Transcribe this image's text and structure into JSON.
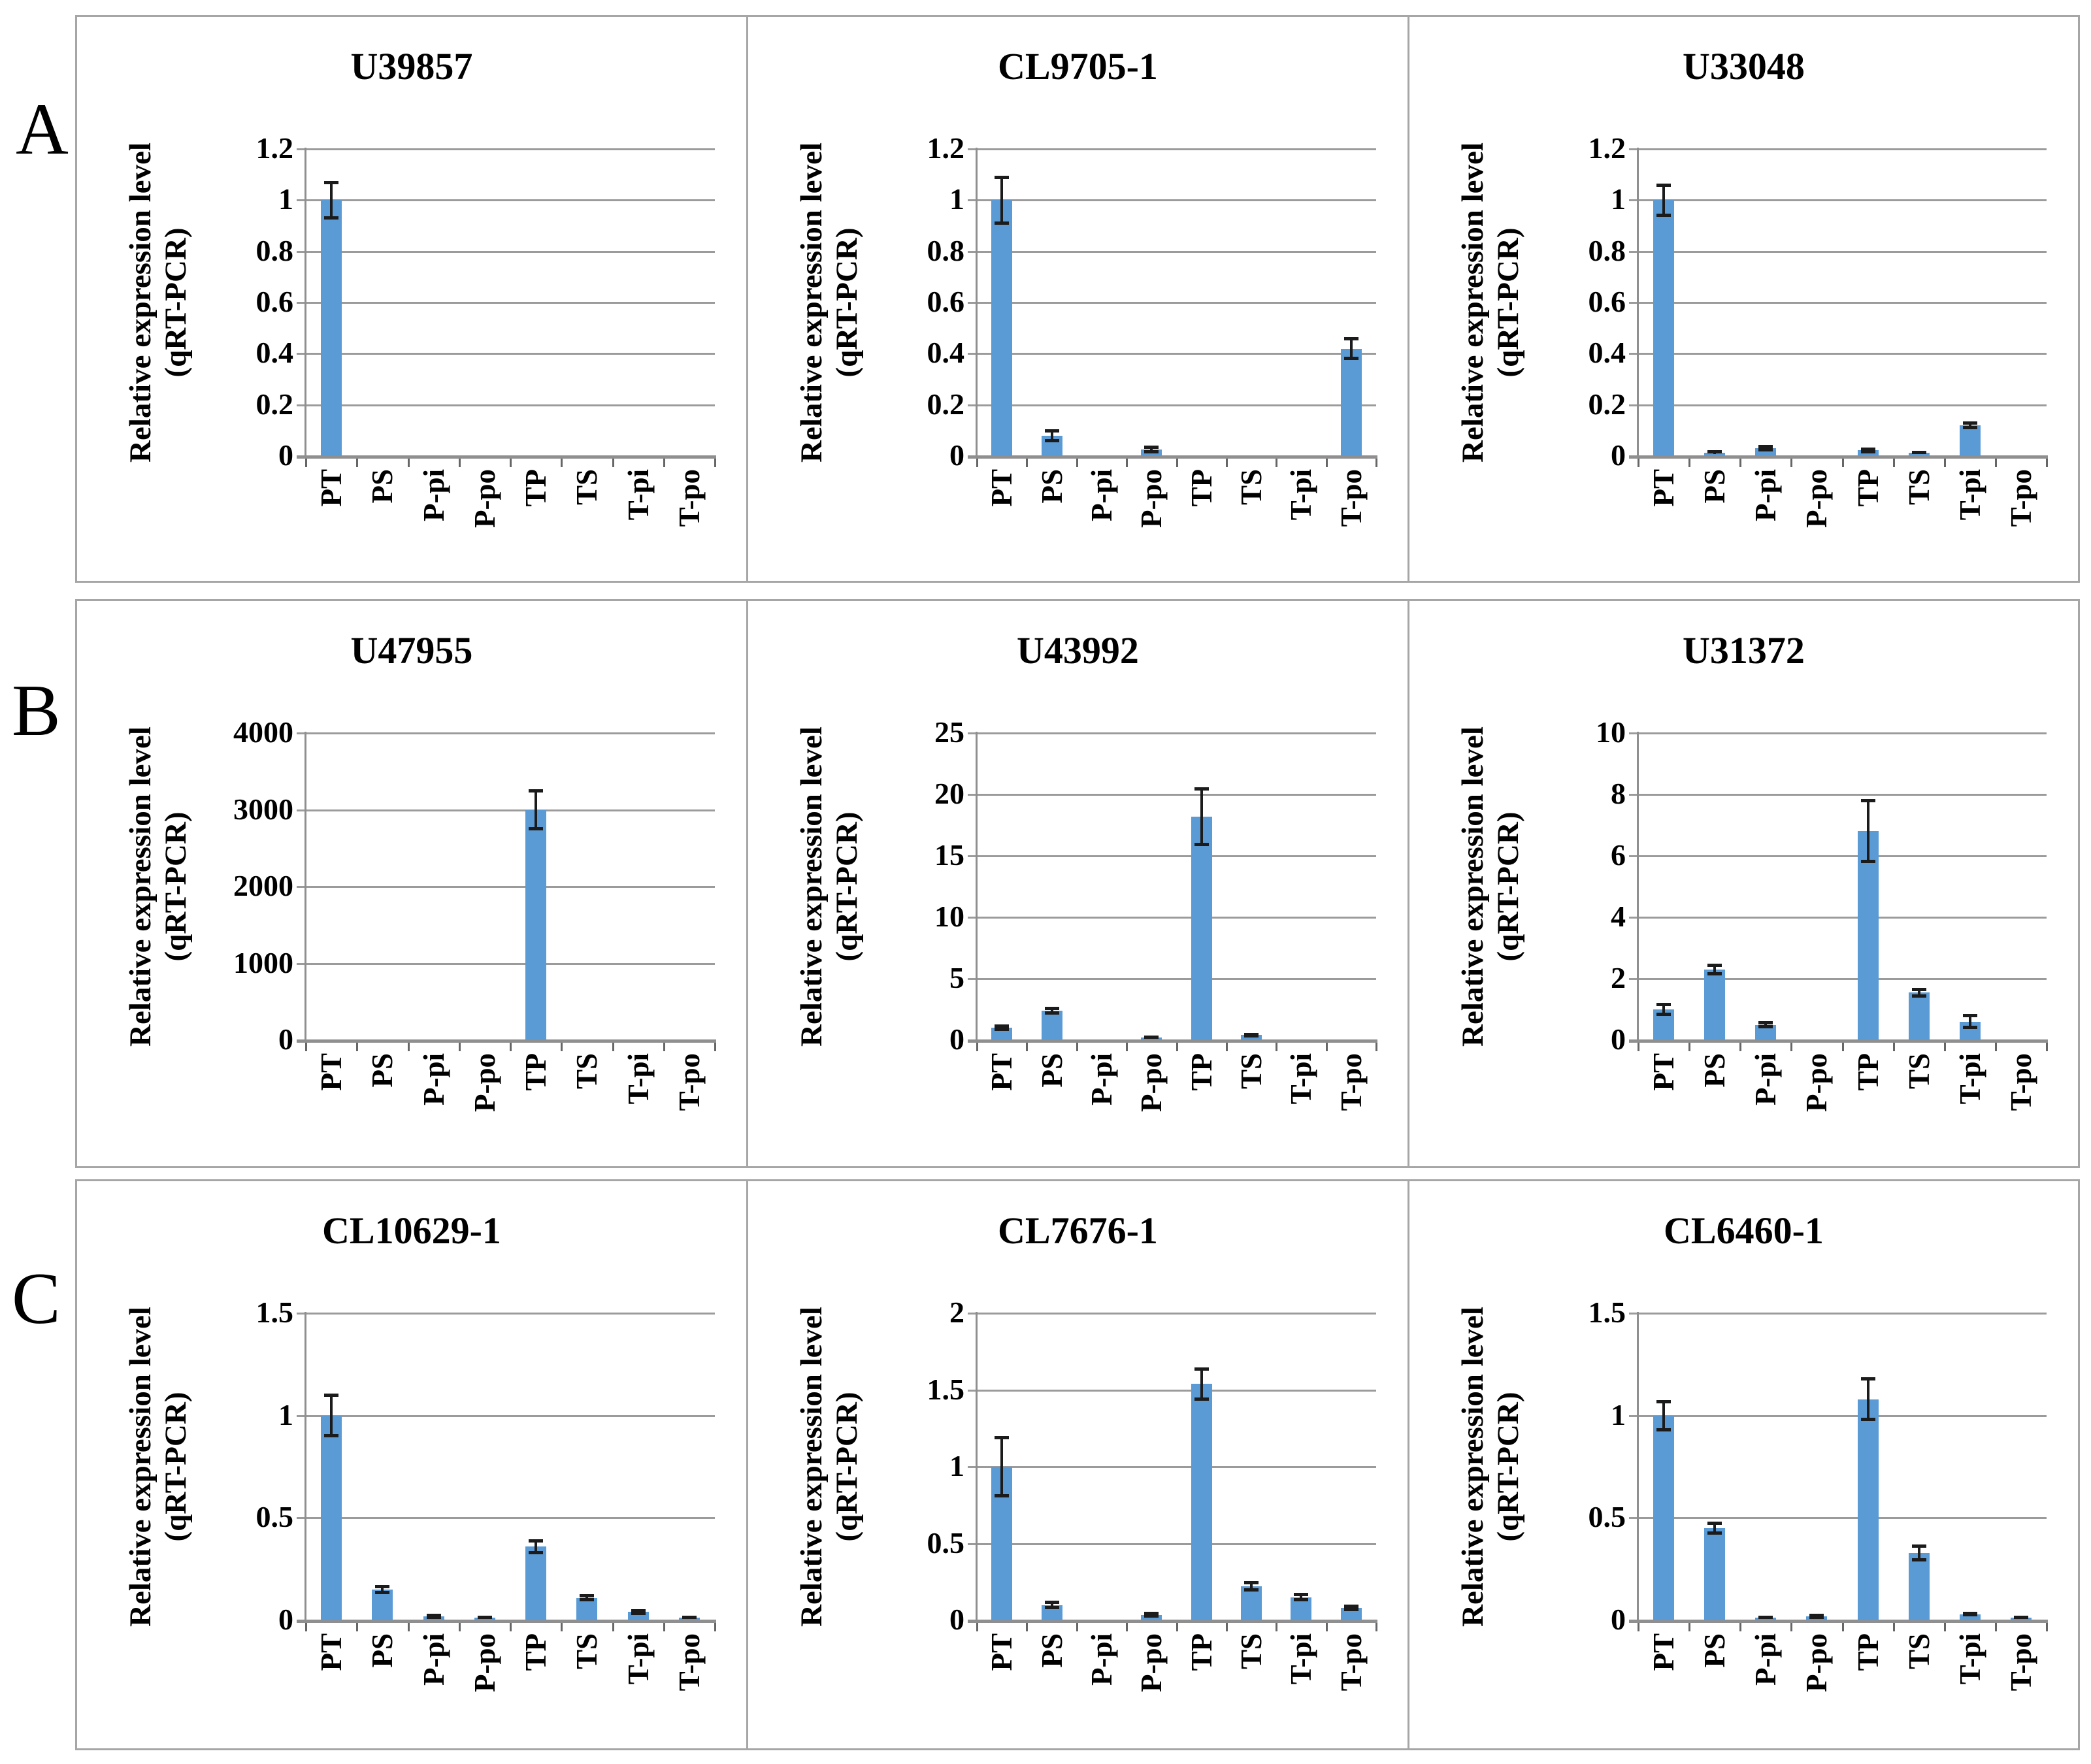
{
  "figure": {
    "row_labels": [
      "A",
      "B",
      "C"
    ],
    "y_axis_label_line1": "Relative expression level",
    "y_axis_label_line2": "(qRT-PCR)",
    "categories": [
      "PT",
      "PS",
      "P-pi",
      "P-po",
      "TP",
      "TS",
      "T-pi",
      "T-po"
    ],
    "colors": {
      "bar": "#5b9bd5",
      "grid": "#9b9b9b",
      "axis": "#8f8f8f",
      "tick": "#666666",
      "error_bar": "#1b1b1b",
      "panel_border": "#a6a6a6",
      "text": "#000000"
    }
  },
  "chart_data": [
    {
      "type": "bar",
      "panel": "A",
      "title": "U39857",
      "ylabel": "Relative expression level (qRT-PCR)",
      "ylim": [
        0,
        1.2
      ],
      "yticks": [
        0,
        0.2,
        0.4,
        0.6,
        0.8,
        1,
        1.2
      ],
      "grid": true,
      "categories": [
        "PT",
        "PS",
        "P-pi",
        "P-po",
        "TP",
        "TS",
        "T-pi",
        "T-po"
      ],
      "values": [
        1.0,
        0,
        0,
        0,
        0,
        0,
        0,
        0
      ],
      "errors": [
        0.07,
        0,
        0,
        0,
        0,
        0,
        0,
        0
      ]
    },
    {
      "type": "bar",
      "panel": "A",
      "title": "CL9705-1",
      "ylabel": "Relative expression level (qRT-PCR)",
      "ylim": [
        0,
        1.2
      ],
      "yticks": [
        0,
        0.2,
        0.4,
        0.6,
        0.8,
        1,
        1.2
      ],
      "grid": true,
      "categories": [
        "PT",
        "PS",
        "P-pi",
        "P-po",
        "TP",
        "TS",
        "T-pi",
        "T-po"
      ],
      "values": [
        1.0,
        0.08,
        0,
        0.025,
        0,
        0,
        0,
        0.42
      ],
      "errors": [
        0.09,
        0.02,
        0,
        0.01,
        0,
        0,
        0,
        0.04
      ]
    },
    {
      "type": "bar",
      "panel": "A",
      "title": "U33048",
      "ylabel": "Relative expression level (qRT-PCR)",
      "ylim": [
        0,
        1.2
      ],
      "yticks": [
        0,
        0.2,
        0.4,
        0.6,
        0.8,
        1,
        1.2
      ],
      "grid": true,
      "categories": [
        "PT",
        "PS",
        "P-pi",
        "P-po",
        "TP",
        "TS",
        "T-pi",
        "T-po"
      ],
      "values": [
        1.0,
        0.012,
        0.03,
        0,
        0.022,
        0.012,
        0.12,
        0
      ],
      "errors": [
        0.06,
        0.005,
        0.008,
        0,
        0.006,
        0.004,
        0.01,
        0
      ]
    },
    {
      "type": "bar",
      "panel": "B",
      "title": "U47955",
      "ylabel": "Relative expression level (qRT-PCR)",
      "ylim": [
        0,
        4000
      ],
      "yticks": [
        0,
        1000,
        2000,
        3000,
        4000
      ],
      "grid": true,
      "categories": [
        "PT",
        "PS",
        "P-pi",
        "P-po",
        "TP",
        "TS",
        "T-pi",
        "T-po"
      ],
      "values": [
        0,
        0,
        0,
        0,
        3000,
        0,
        0,
        0
      ],
      "errors": [
        0,
        0,
        0,
        0,
        250,
        0,
        0,
        0
      ]
    },
    {
      "type": "bar",
      "panel": "B",
      "title": "U43992",
      "ylabel": "Relative expression level (qRT-PCR)",
      "ylim": [
        0,
        25
      ],
      "yticks": [
        0,
        5,
        10,
        15,
        20,
        25
      ],
      "grid": true,
      "categories": [
        "PT",
        "PS",
        "P-pi",
        "P-po",
        "TP",
        "TS",
        "T-pi",
        "T-po"
      ],
      "values": [
        1.0,
        2.4,
        0,
        0.2,
        18.2,
        0.4,
        0,
        0
      ],
      "errors": [
        0.15,
        0.2,
        0,
        0.06,
        2.3,
        0.1,
        0,
        0
      ]
    },
    {
      "type": "bar",
      "panel": "B",
      "title": "U31372",
      "ylabel": "Relative expression level (qRT-PCR)",
      "ylim": [
        0,
        10
      ],
      "yticks": [
        0,
        2,
        4,
        6,
        8,
        10
      ],
      "grid": true,
      "categories": [
        "PT",
        "PS",
        "P-pi",
        "P-po",
        "TP",
        "TS",
        "T-pi",
        "T-po"
      ],
      "values": [
        1.0,
        2.3,
        0.5,
        0,
        6.8,
        1.55,
        0.6,
        0
      ],
      "errors": [
        0.18,
        0.15,
        0.07,
        0,
        1.0,
        0.12,
        0.2,
        0
      ]
    },
    {
      "type": "bar",
      "panel": "C",
      "title": "CL10629-1",
      "ylabel": "Relative expression level (qRT-PCR)",
      "ylim": [
        0,
        1.5
      ],
      "yticks": [
        0,
        0.5,
        1,
        1.5
      ],
      "grid": true,
      "categories": [
        "PT",
        "PS",
        "P-pi",
        "P-po",
        "TP",
        "TS",
        "T-pi",
        "T-po"
      ],
      "values": [
        1.0,
        0.15,
        0.02,
        0.012,
        0.36,
        0.11,
        0.04,
        0.012
      ],
      "errors": [
        0.1,
        0.015,
        0.006,
        0.004,
        0.03,
        0.01,
        0.008,
        0.004
      ]
    },
    {
      "type": "bar",
      "panel": "C",
      "title": "CL7676-1",
      "ylabel": "Relative expression level (qRT-PCR)",
      "ylim": [
        0,
        2
      ],
      "yticks": [
        0,
        0.5,
        1,
        1.5,
        2
      ],
      "grid": true,
      "categories": [
        "PT",
        "PS",
        "P-pi",
        "P-po",
        "TP",
        "TS",
        "T-pi",
        "T-po"
      ],
      "values": [
        1.0,
        0.1,
        0,
        0.035,
        1.54,
        0.22,
        0.15,
        0.08
      ],
      "errors": [
        0.19,
        0.02,
        0,
        0.01,
        0.1,
        0.025,
        0.02,
        0.012
      ]
    },
    {
      "type": "bar",
      "panel": "C",
      "title": "CL6460-1",
      "ylabel": "Relative expression level (qRT-PCR)",
      "ylim": [
        0,
        1.5
      ],
      "yticks": [
        0,
        0.5,
        1,
        1.5
      ],
      "grid": true,
      "categories": [
        "PT",
        "PS",
        "P-pi",
        "P-po",
        "TP",
        "TS",
        "T-pi",
        "T-po"
      ],
      "values": [
        1.0,
        0.45,
        0.012,
        0.02,
        1.08,
        0.33,
        0.03,
        0.012
      ],
      "errors": [
        0.07,
        0.025,
        0.004,
        0.006,
        0.1,
        0.035,
        0.006,
        0.004
      ]
    }
  ]
}
